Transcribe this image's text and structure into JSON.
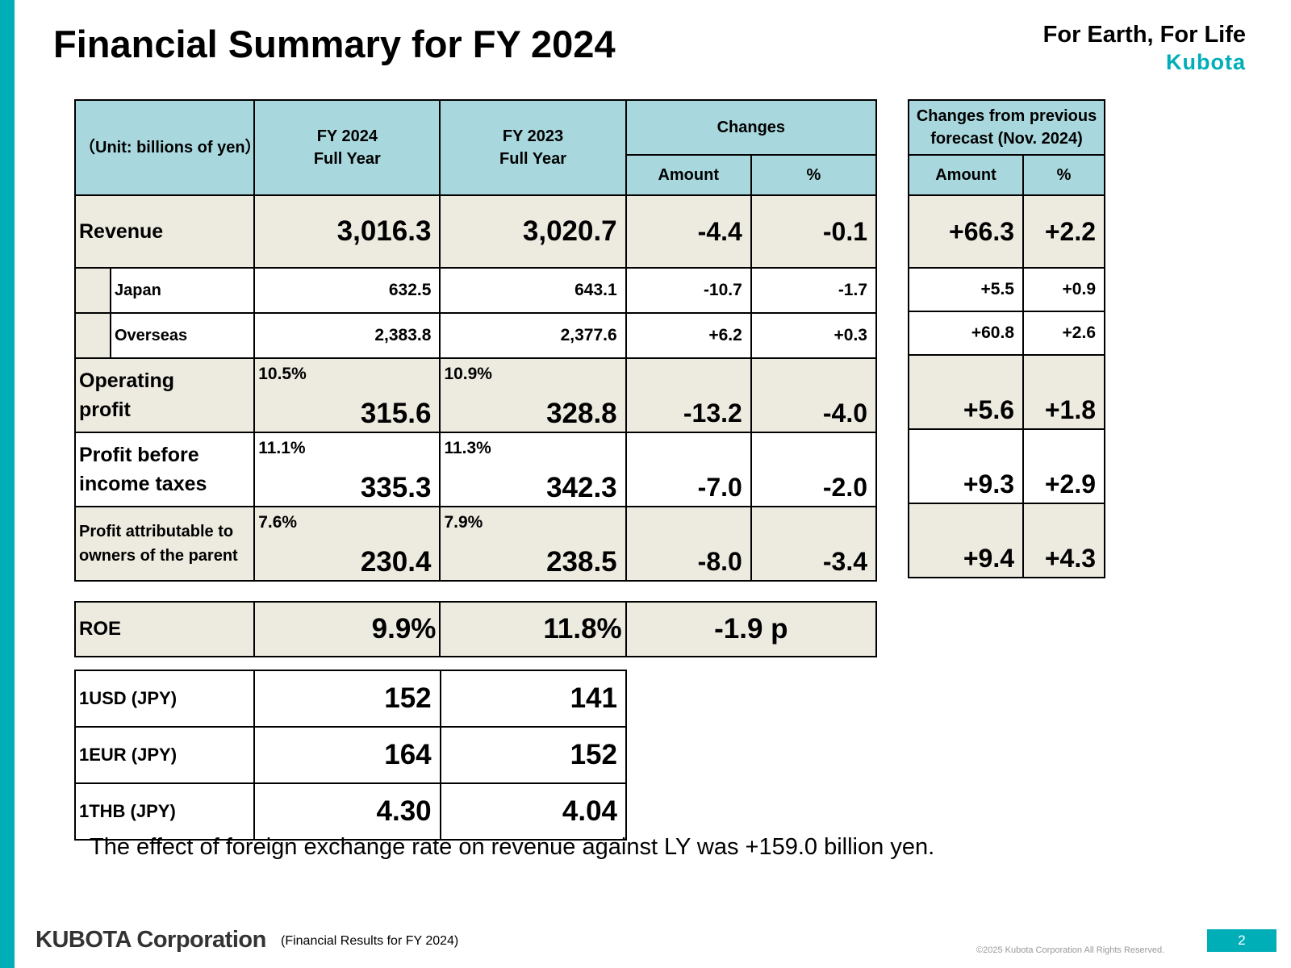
{
  "title": "Financial Summary for FY 2024",
  "tagline": "For Earth, For Life",
  "logo_text": "Kubota",
  "table": {
    "unit": "（Unit: billions of yen）",
    "col_fy2024": [
      "FY 2024",
      "Full Year"
    ],
    "col_fy2023": [
      "FY 2023",
      "Full Year"
    ],
    "changes": "Changes",
    "amount": "Amount",
    "percent": "%",
    "forecast_header": [
      "Changes from previous",
      "forecast (Nov. 2024)"
    ],
    "rows": {
      "revenue": {
        "label": "Revenue",
        "fy2024": "3,016.3",
        "fy2023": "3,020.7",
        "chg_amt": "-4.4",
        "chg_pct": "-0.1",
        "fc_amt": "+66.3",
        "fc_pct": "+2.2"
      },
      "japan": {
        "label": "Japan",
        "fy2024": "632.5",
        "fy2023": "643.1",
        "chg_amt": "-10.7",
        "chg_pct": "-1.7",
        "fc_amt": "+5.5",
        "fc_pct": "+0.9"
      },
      "overseas": {
        "label": "Overseas",
        "fy2024": "2,383.8",
        "fy2023": "2,377.6",
        "chg_amt": "+6.2",
        "chg_pct": "+0.3",
        "fc_amt": "+60.8",
        "fc_pct": "+2.6"
      },
      "operating_profit": {
        "label": [
          "Operating",
          "profit"
        ],
        "ratio2024": "10.5%",
        "fy2024": "315.6",
        "ratio2023": "10.9%",
        "fy2023": "328.8",
        "chg_amt": "-13.2",
        "chg_pct": "-4.0",
        "fc_amt": "+5.6",
        "fc_pct": "+1.8"
      },
      "profit_before_tax": {
        "label": [
          "Profit before",
          "income taxes"
        ],
        "ratio2024": "11.1%",
        "fy2024": "335.3",
        "ratio2023": "11.3%",
        "fy2023": "342.3",
        "chg_amt": "-7.0",
        "chg_pct": "-2.0",
        "fc_amt": "+9.3",
        "fc_pct": "+2.9"
      },
      "profit_attributable": {
        "label": [
          "Profit attributable to",
          "owners of the parent"
        ],
        "ratio2024": "7.6%",
        "fy2024": "230.4",
        "ratio2023": "7.9%",
        "fy2023": "238.5",
        "chg_amt": "-8.0",
        "chg_pct": "-3.4",
        "fc_amt": "+9.4",
        "fc_pct": "+4.3"
      }
    }
  },
  "roe": {
    "label": "ROE",
    "fy2024": "9.9%",
    "fy2023": "11.8%",
    "change": "-1.9 p"
  },
  "fx": [
    {
      "label": "1USD (JPY)",
      "fy2024": "152",
      "fy2023": "141"
    },
    {
      "label": "1EUR (JPY)",
      "fy2024": "164",
      "fy2023": "152"
    },
    {
      "label": "1THB (JPY)",
      "fy2024": "4.30",
      "fy2023": "4.04"
    }
  ],
  "note": "The effect of foreign exchange rate on revenue against LY was +159.0 billion yen.",
  "footer": {
    "company": "KUBOTA Corporation",
    "subtitle": "(Financial Results for FY 2024)",
    "copyright": "©2025 Kubota Corporation All Rights Reserved.",
    "page": "2"
  },
  "colors": {
    "accent": "#00AEB8",
    "header_fill": "#A8D8DE",
    "row_fill": "#EDEAE0"
  }
}
